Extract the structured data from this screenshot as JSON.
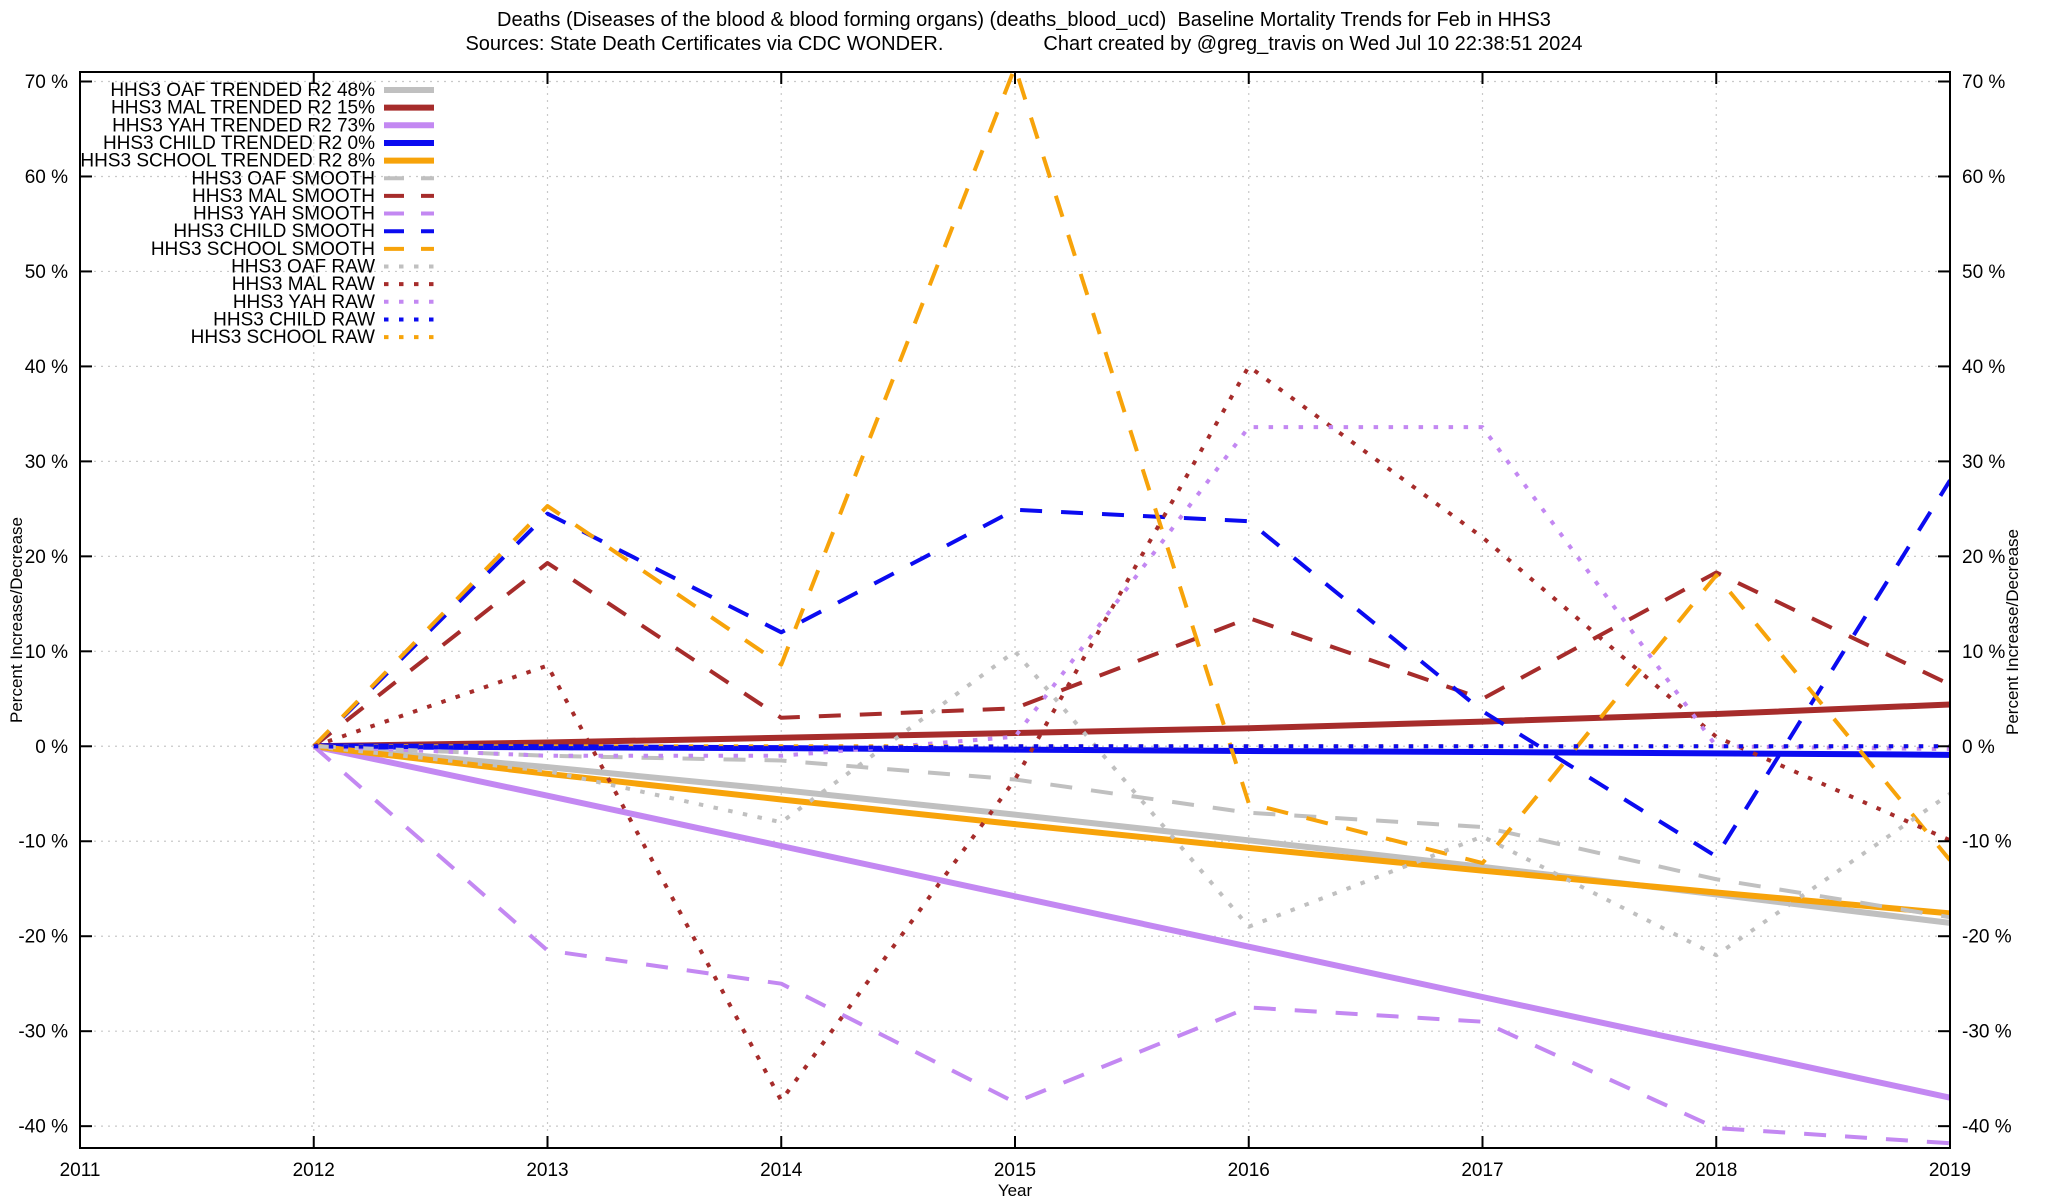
{
  "header": {
    "title": "Deaths (Diseases of the blood & blood forming organs) (deaths_blood_ucd)  Baseline Mortality Trends for Feb in HHS3",
    "source": "Sources: State Death Certificates via CDC WONDER.",
    "credit": "Chart created by @greg_travis on Wed Jul 10 22:38:51 2024"
  },
  "chart_data": {
    "type": "line",
    "title": "Deaths (Diseases of the blood & blood forming organs) (deaths_blood_ucd)  Baseline Mortality Trends for Feb in HHS3",
    "xlabel": "Year",
    "ylabel_left": "Percent Increase/Decrease",
    "ylabel_right": "Percent Increase/Decrease",
    "grid": true,
    "legend_position": "top-left",
    "xlim": [
      2011,
      2019
    ],
    "ylim": [
      -42.3,
      71.0
    ],
    "x_ticks": [
      2011,
      2012,
      2013,
      2014,
      2015,
      2016,
      2017,
      2018,
      2019
    ],
    "y_ticks": [
      -40,
      -30,
      -20,
      -10,
      0,
      10,
      20,
      30,
      40,
      50,
      60,
      70
    ],
    "y_tick_suffix": " %",
    "x": [
      2012,
      2013,
      2014,
      2015,
      2016,
      2017,
      2018,
      2019
    ],
    "colors": {
      "gray": "#c0c0c0",
      "dark_red": "#a62c2b",
      "violet": "#c388f2",
      "blue": "#0b0bf0",
      "orange": "#f7a30a",
      "grid": "#c9c9c9",
      "axis": "#000000"
    },
    "series": [
      {
        "id": "oaf-trended",
        "label": "HHS3 OAF TRENDED R2  48%",
        "r2": "48%",
        "group": "trended",
        "color_key": "gray",
        "values": [
          0,
          -2.2,
          -4.6,
          -7.2,
          -9.9,
          -12.7,
          -15.6,
          -18.6
        ]
      },
      {
        "id": "mal-trended",
        "label": "HHS3 MAL TRENDED R2  15%",
        "r2": "15%",
        "group": "trended",
        "color_key": "dark_red",
        "values": [
          0,
          0.4,
          0.9,
          1.4,
          1.9,
          2.6,
          3.4,
          4.4
        ]
      },
      {
        "id": "yah-trended",
        "label": "HHS3 YAH TRENDED R2  73%",
        "r2": "73%",
        "group": "trended",
        "color_key": "violet",
        "values": [
          0,
          -5.2,
          -10.5,
          -15.8,
          -21.1,
          -26.4,
          -31.7,
          -37.0
        ]
      },
      {
        "id": "child-trended",
        "label": "HHS3 CHILD TRENDED R2   0%",
        "r2": "0%",
        "group": "trended",
        "color_key": "blue",
        "values": [
          0,
          -0.1,
          -0.2,
          -0.35,
          -0.5,
          -0.6,
          -0.75,
          -0.9
        ]
      },
      {
        "id": "school-trended",
        "label": "HHS3 SCHOOL TRENDED R2   8%",
        "r2": "8%",
        "group": "trended",
        "color_key": "orange",
        "values": [
          0,
          -2.9,
          -5.6,
          -8.2,
          -10.7,
          -13.1,
          -15.4,
          -17.6
        ]
      },
      {
        "id": "oaf-smooth",
        "label": "HHS3 OAF SMOOTH",
        "group": "smooth",
        "color_key": "gray",
        "values": [
          0,
          -1,
          -1.5,
          -3.5,
          -7,
          -8.5,
          -14,
          -18
        ]
      },
      {
        "id": "mal-smooth",
        "label": "HHS3 MAL SMOOTH",
        "group": "smooth",
        "color_key": "dark_red",
        "values": [
          0,
          19.3,
          3,
          4,
          13.5,
          5,
          18.3,
          6.5
        ]
      },
      {
        "id": "yah-smooth",
        "label": "HHS3 YAH SMOOTH",
        "group": "smooth",
        "color_key": "violet",
        "values": [
          0,
          -21.5,
          -25,
          -37.5,
          -27.5,
          -29,
          -40.2,
          -41.8
        ]
      },
      {
        "id": "child-smooth",
        "label": "HHS3 CHILD SMOOTH",
        "group": "smooth",
        "color_key": "blue",
        "values": [
          0,
          24.5,
          12,
          24.9,
          23.7,
          3.7,
          -11.6,
          28
        ]
      },
      {
        "id": "school-smooth",
        "label": "HHS3 SCHOOL SMOOTH",
        "group": "smooth",
        "color_key": "orange",
        "values": [
          0,
          25.3,
          8.6,
          71.5,
          -6,
          -12.3,
          18,
          -12
        ]
      },
      {
        "id": "oaf-raw",
        "label": "HHS3 OAF RAW",
        "group": "raw",
        "color_key": "gray",
        "values": [
          0,
          -2.6,
          -8,
          10,
          -19,
          -9.5,
          -22,
          -5
        ]
      },
      {
        "id": "mal-raw",
        "label": "HHS3 MAL RAW",
        "group": "raw",
        "color_key": "dark_red",
        "values": [
          0,
          8.5,
          -37.3,
          -3.5,
          40,
          22,
          1,
          -9.9
        ]
      },
      {
        "id": "yah-raw",
        "label": "HHS3 YAH RAW",
        "group": "raw",
        "color_key": "violet",
        "values": [
          0,
          -1,
          -1,
          1,
          33.6,
          33.6,
          0,
          -0.3
        ]
      },
      {
        "id": "child-raw",
        "label": "HHS3 CHILD RAW",
        "group": "raw",
        "color_key": "blue",
        "values": [
          0,
          -0.2,
          -0.2,
          0,
          0,
          0,
          0,
          0
        ],
        "z": 1
      },
      {
        "id": "school-raw",
        "label": "HHS3 SCHOOL RAW",
        "group": "raw",
        "color_key": "orange",
        "values": [
          0,
          0,
          0,
          0,
          0,
          0,
          0,
          0
        ]
      }
    ]
  }
}
